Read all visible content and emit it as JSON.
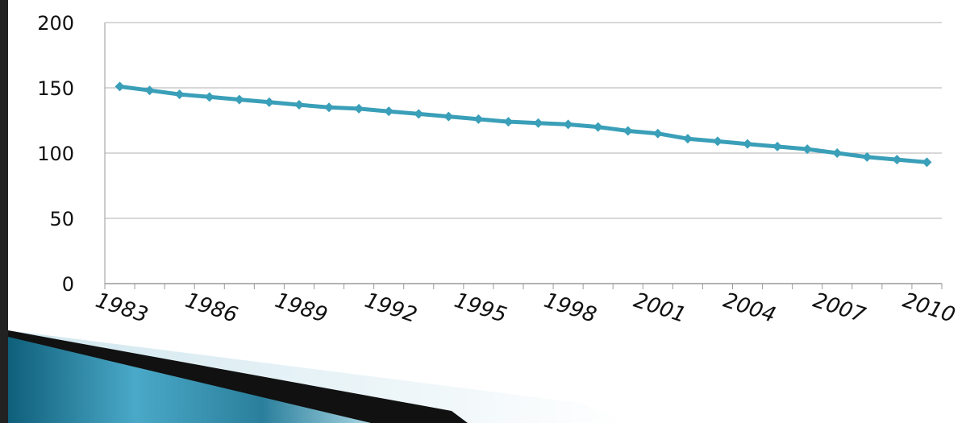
{
  "chart_data": {
    "type": "line",
    "title": "",
    "xlabel": "",
    "ylabel": "",
    "ylim": [
      0,
      200
    ],
    "yticks": [
      0,
      50,
      100,
      150,
      200
    ],
    "grid": true,
    "legend": "none",
    "x": [
      1983,
      1984,
      1985,
      1986,
      1987,
      1988,
      1989,
      1990,
      1991,
      1992,
      1993,
      1994,
      1995,
      1996,
      1997,
      1998,
      1999,
      2000,
      2001,
      2002,
      2003,
      2004,
      2005,
      2006,
      2007,
      2008,
      2009,
      2010
    ],
    "xtick_labels": [
      "1983",
      "1986",
      "1989",
      "1992",
      "1995",
      "1998",
      "2001",
      "2004",
      "2007",
      "2010"
    ],
    "series": [
      {
        "values": [
          151,
          148,
          145,
          143,
          141,
          139,
          137,
          135,
          134,
          132,
          130,
          128,
          126,
          124,
          123,
          122,
          120,
          117,
          115,
          111,
          109,
          107,
          105,
          103,
          100,
          97,
          95,
          93
        ],
        "color": "#3a9fb8"
      }
    ]
  },
  "colors": {
    "line": "#3a9fb8",
    "grid": "#b0b0b0",
    "decor_dark": "#111111",
    "decor_blue": "#2a8aa8",
    "frame": "#222222"
  }
}
